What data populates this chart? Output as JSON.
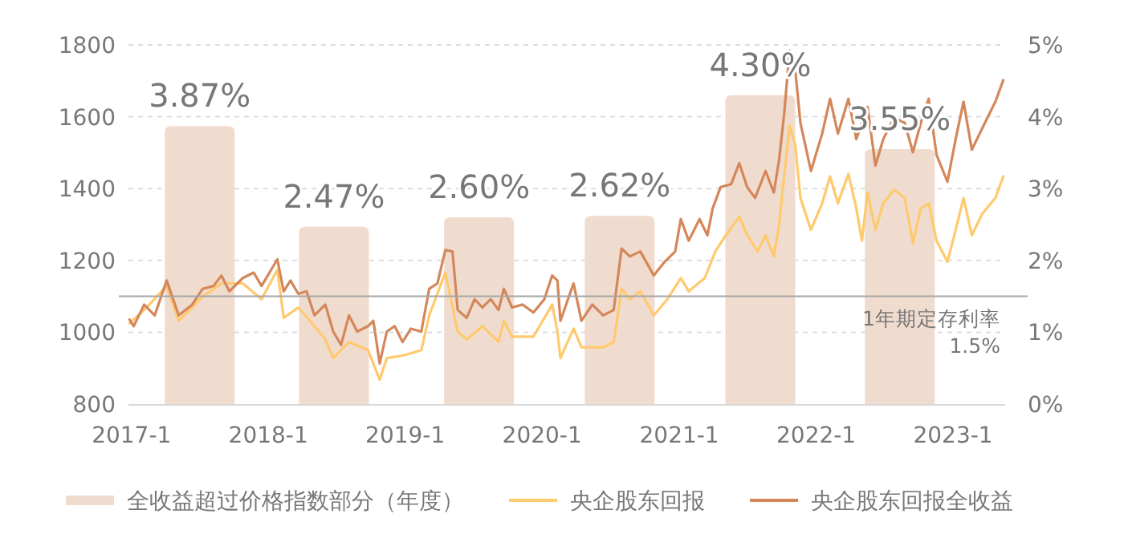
{
  "chart_data": {
    "type": "line",
    "xlim": [
      "2016-12-24",
      "2023-05-20"
    ],
    "xticks": [
      {
        "value": "2017-01-01",
        "label": "2017-1"
      },
      {
        "value": "2018-01-01",
        "label": "2018-1"
      },
      {
        "value": "2019-01-01",
        "label": "2019-1"
      },
      {
        "value": "2020-01-01",
        "label": "2020-1"
      },
      {
        "value": "2021-01-01",
        "label": "2021-1"
      },
      {
        "value": "2022-01-01",
        "label": "2022-1"
      },
      {
        "value": "2023-01-01",
        "label": "2023-1"
      }
    ],
    "ylim": [
      800,
      1800
    ],
    "yticks": [
      800,
      1000,
      1200,
      1400,
      1600,
      1800
    ],
    "y2lim": [
      0,
      5
    ],
    "y2ticks": [
      {
        "value": 0,
        "label": "0%"
      },
      {
        "value": 1,
        "label": "1%"
      },
      {
        "value": 2,
        "label": "2%"
      },
      {
        "value": 3,
        "label": "3%"
      },
      {
        "value": 4,
        "label": "4%"
      },
      {
        "value": 5,
        "label": "5%"
      }
    ],
    "grid": "y",
    "legend": "bottom",
    "ref_lines": [
      {
        "axis": "y2",
        "value": 1.5,
        "label": "1年期定存利率\n1.5%",
        "color": "#a6a6a6"
      }
    ],
    "series": [
      {
        "name": "全收益超过价格指数部分（年度）",
        "type": "bar",
        "axis": "y2",
        "color": "#f0dccf",
        "x": [
          "2017-07-02",
          "2018-06-25",
          "2019-07-17",
          "2020-07-26",
          "2021-08-05",
          "2022-08-12"
        ],
        "values": [
          3.87,
          2.47,
          2.6,
          2.62,
          4.3,
          3.55
        ],
        "value_labels": [
          "3.87%",
          "2.47%",
          "2.60%",
          "2.62%",
          "4.30%",
          "3.55%"
        ]
      },
      {
        "name": "央企股东回报",
        "color": "#ffc96e",
        "x": [
          "2016-12-27",
          "2017-02-04",
          "2017-04-05",
          "2017-05-07",
          "2017-07-10",
          "2017-08-29",
          "2017-10-25",
          "2017-12-14",
          "2018-01-25",
          "2018-02-11",
          "2018-03-22",
          "2018-05-04",
          "2018-06-02",
          "2018-06-23",
          "2018-08-04",
          "2018-09-24",
          "2018-10-25",
          "2018-11-13",
          "2018-12-25",
          "2019-02-13",
          "2019-03-06",
          "2019-04-18",
          "2019-05-21",
          "2019-06-14",
          "2019-07-26",
          "2019-09-07",
          "2019-09-21",
          "2019-10-13",
          "2019-12-09",
          "2020-01-28",
          "2020-02-11",
          "2020-02-19",
          "2020-03-25",
          "2020-04-15",
          "2020-06-12",
          "2020-07-10",
          "2020-07-31",
          "2020-08-22",
          "2020-09-19",
          "2020-10-25",
          "2020-11-30",
          "2021-01-05",
          "2021-01-26",
          "2021-03-10",
          "2021-04-07",
          "2021-05-05",
          "2021-06-10",
          "2021-07-01",
          "2021-07-29",
          "2021-08-19",
          "2021-09-10",
          "2021-09-24",
          "2021-10-22",
          "2021-11-06",
          "2021-11-20",
          "2021-12-18",
          "2022-01-17",
          "2022-02-07",
          "2022-02-28",
          "2022-03-28",
          "2022-04-18",
          "2022-05-03",
          "2022-05-18",
          "2022-06-08",
          "2022-06-29",
          "2022-07-28",
          "2022-08-25",
          "2022-09-16",
          "2022-10-07",
          "2022-10-28",
          "2022-11-18",
          "2022-12-17",
          "2023-01-08",
          "2023-01-29",
          "2023-02-20",
          "2023-03-20",
          "2023-04-24",
          "2023-05-15"
        ],
        "values": [
          1025,
          1062,
          1129,
          1032,
          1099,
          1136,
          1136,
          1092,
          1174,
          1040,
          1069,
          1017,
          980,
          928,
          973,
          950,
          868,
          928,
          935,
          950,
          1047,
          1166,
          1002,
          980,
          1017,
          973,
          1032,
          988,
          988,
          1077,
          1002,
          928,
          1010,
          958,
          958,
          973,
          1121,
          1092,
          1114,
          1047,
          1092,
          1151,
          1114,
          1151,
          1225,
          1270,
          1322,
          1270,
          1225,
          1270,
          1211,
          1300,
          1575,
          1523,
          1374,
          1285,
          1359,
          1434,
          1359,
          1441,
          1345,
          1255,
          1389,
          1285,
          1359,
          1397,
          1374,
          1248,
          1345,
          1359,
          1255,
          1196,
          1285,
          1374,
          1270,
          1330,
          1374,
          1434
        ]
      },
      {
        "name": "央企股东回报全收益",
        "color": "#d4875a",
        "x": [
          "2016-12-27",
          "2017-01-07",
          "2017-02-04",
          "2017-03-04",
          "2017-04-05",
          "2017-05-07",
          "2017-06-12",
          "2017-07-10",
          "2017-08-08",
          "2017-08-29",
          "2017-09-19",
          "2017-10-25",
          "2017-11-23",
          "2017-12-14",
          "2018-01-04",
          "2018-01-25",
          "2018-02-11",
          "2018-03-01",
          "2018-03-22",
          "2018-04-13",
          "2018-05-04",
          "2018-06-02",
          "2018-06-23",
          "2018-07-14",
          "2018-08-04",
          "2018-08-26",
          "2018-09-24",
          "2018-10-08",
          "2018-10-25",
          "2018-11-13",
          "2018-12-04",
          "2018-12-25",
          "2019-01-16",
          "2019-02-13",
          "2019-03-06",
          "2019-03-28",
          "2019-04-18",
          "2019-05-07",
          "2019-05-21",
          "2019-06-14",
          "2019-07-05",
          "2019-07-26",
          "2019-08-17",
          "2019-09-07",
          "2019-09-21",
          "2019-10-13",
          "2019-11-10",
          "2019-12-09",
          "2020-01-07",
          "2020-01-28",
          "2020-02-11",
          "2020-02-19",
          "2020-03-25",
          "2020-04-15",
          "2020-05-14",
          "2020-06-12",
          "2020-07-10",
          "2020-07-31",
          "2020-08-22",
          "2020-09-19",
          "2020-10-25",
          "2020-11-23",
          "2020-12-21",
          "2021-01-05",
          "2021-01-26",
          "2021-02-24",
          "2021-03-17",
          "2021-03-31",
          "2021-04-21",
          "2021-05-19",
          "2021-06-10",
          "2021-07-01",
          "2021-07-22",
          "2021-08-19",
          "2021-09-10",
          "2021-09-24",
          "2021-10-08",
          "2021-10-22",
          "2021-11-06",
          "2021-11-20",
          "2021-12-18",
          "2022-01-17",
          "2022-02-07",
          "2022-02-28",
          "2022-03-28",
          "2022-04-18",
          "2022-05-18",
          "2022-06-08",
          "2022-06-29",
          "2022-07-28",
          "2022-08-25",
          "2022-09-16",
          "2022-10-07",
          "2022-10-28",
          "2022-11-18",
          "2022-12-17",
          "2023-01-08",
          "2023-01-29",
          "2023-02-20",
          "2023-03-13",
          "2023-04-03",
          "2023-04-24",
          "2023-05-15"
        ],
        "values": [
          1035,
          1017,
          1077,
          1047,
          1144,
          1047,
          1077,
          1121,
          1129,
          1158,
          1114,
          1151,
          1166,
          1129,
          1166,
          1203,
          1114,
          1144,
          1107,
          1114,
          1047,
          1077,
          1002,
          965,
          1047,
          1002,
          1017,
          1032,
          913,
          1002,
          1017,
          973,
          1010,
          1002,
          1121,
          1136,
          1229,
          1225,
          1062,
          1040,
          1092,
          1069,
          1092,
          1062,
          1121,
          1069,
          1077,
          1055,
          1092,
          1158,
          1144,
          1032,
          1136,
          1032,
          1077,
          1047,
          1062,
          1233,
          1211,
          1225,
          1158,
          1196,
          1225,
          1315,
          1255,
          1315,
          1270,
          1345,
          1404,
          1412,
          1471,
          1404,
          1374,
          1449,
          1389,
          1479,
          1612,
          1784,
          1732,
          1583,
          1449,
          1553,
          1650,
          1553,
          1650,
          1538,
          1627,
          1464,
          1538,
          1598,
          1583,
          1501,
          1583,
          1650,
          1494,
          1419,
          1538,
          1642,
          1508,
          1553,
          1598,
          1642,
          1702
        ]
      }
    ]
  }
}
